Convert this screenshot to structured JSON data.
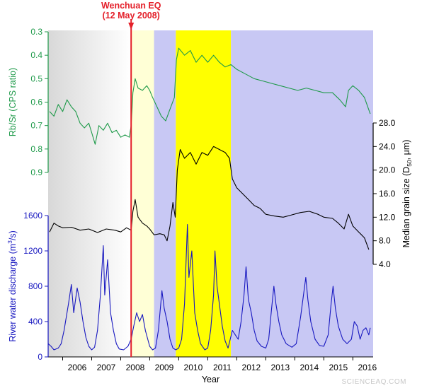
{
  "chart_data": {
    "type": "line",
    "title": "",
    "xlabel": "Year",
    "x_range": [
      2005.5,
      2016.7
    ],
    "x_ticks": [
      "2006",
      "2007",
      "2008",
      "2009",
      "2010",
      "2011",
      "2012",
      "2013",
      "2014",
      "2015",
      "2016"
    ],
    "event": {
      "label_line1": "Wenchuan EQ",
      "label_line2": "(12 May 2008)",
      "x": 2008.36,
      "color": "#e4202a"
    },
    "shaded_periods": [
      {
        "start": 2005.5,
        "end": 2008.36,
        "fill": "gradient-grey"
      },
      {
        "start": 2008.36,
        "end": 2009.15,
        "fill": "#ffffd6"
      },
      {
        "start": 2009.15,
        "end": 2009.9,
        "fill": "#c8c8f4"
      },
      {
        "start": 2009.9,
        "end": 2011.8,
        "fill": "#ffff00"
      },
      {
        "start": 2011.8,
        "end": 2016.7,
        "fill": "#c8c8f4"
      }
    ],
    "axes": [
      {
        "id": "rbsr",
        "label": "Rb/Sr (CPS ratio)",
        "side": "left",
        "inverted": true,
        "range": [
          0.3,
          0.9
        ],
        "ticks": [
          "0.3",
          "0.4",
          "0.5",
          "0.6",
          "0.7",
          "0.8",
          "0.9"
        ],
        "color": "#1f9a4a"
      },
      {
        "id": "grain",
        "label": "Median grain size (D",
        "label_sub": "50",
        "label_suffix": ", μm)",
        "side": "right",
        "range": [
          4,
          28
        ],
        "ticks": [
          "4.0",
          "8.0",
          "12.0",
          "16.0",
          "20.0",
          "24.0",
          "28.0"
        ],
        "color": "#000000"
      },
      {
        "id": "discharge",
        "label": "River water discharge (m",
        "label_sup": "3",
        "label_suffix": "/s)",
        "side": "left",
        "range": [
          0,
          1600
        ],
        "ticks": [
          "0",
          "400",
          "800",
          "1200",
          "1600"
        ],
        "color": "#1818c0"
      }
    ],
    "series": [
      {
        "axis": "rbsr",
        "color": "#1f9a4a",
        "points": [
          [
            2005.55,
            0.64
          ],
          [
            2005.7,
            0.66
          ],
          [
            2005.85,
            0.61
          ],
          [
            2006.0,
            0.64
          ],
          [
            2006.15,
            0.59
          ],
          [
            2006.3,
            0.62
          ],
          [
            2006.45,
            0.64
          ],
          [
            2006.6,
            0.69
          ],
          [
            2006.75,
            0.71
          ],
          [
            2006.9,
            0.69
          ],
          [
            2007.0,
            0.73
          ],
          [
            2007.12,
            0.78
          ],
          [
            2007.25,
            0.7
          ],
          [
            2007.4,
            0.72
          ],
          [
            2007.55,
            0.69
          ],
          [
            2007.7,
            0.73
          ],
          [
            2007.85,
            0.72
          ],
          [
            2008.0,
            0.75
          ],
          [
            2008.15,
            0.74
          ],
          [
            2008.3,
            0.75
          ],
          [
            2008.36,
            0.7
          ],
          [
            2008.42,
            0.56
          ],
          [
            2008.5,
            0.5
          ],
          [
            2008.6,
            0.54
          ],
          [
            2008.75,
            0.55
          ],
          [
            2008.9,
            0.53
          ],
          [
            2009.0,
            0.55
          ],
          [
            2009.1,
            0.58
          ],
          [
            2009.25,
            0.62
          ],
          [
            2009.4,
            0.66
          ],
          [
            2009.55,
            0.68
          ],
          [
            2009.7,
            0.63
          ],
          [
            2009.85,
            0.58
          ],
          [
            2009.92,
            0.42
          ],
          [
            2010.0,
            0.37
          ],
          [
            2010.2,
            0.4
          ],
          [
            2010.4,
            0.38
          ],
          [
            2010.6,
            0.43
          ],
          [
            2010.8,
            0.4
          ],
          [
            2011.0,
            0.43
          ],
          [
            2011.2,
            0.4
          ],
          [
            2011.4,
            0.43
          ],
          [
            2011.6,
            0.45
          ],
          [
            2011.8,
            0.44
          ],
          [
            2012.0,
            0.46
          ],
          [
            2012.3,
            0.48
          ],
          [
            2012.6,
            0.5
          ],
          [
            2012.9,
            0.51
          ],
          [
            2013.2,
            0.52
          ],
          [
            2013.5,
            0.53
          ],
          [
            2013.8,
            0.54
          ],
          [
            2014.1,
            0.55
          ],
          [
            2014.4,
            0.54
          ],
          [
            2014.7,
            0.55
          ],
          [
            2015.0,
            0.56
          ],
          [
            2015.3,
            0.56
          ],
          [
            2015.55,
            0.59
          ],
          [
            2015.75,
            0.62
          ],
          [
            2015.85,
            0.55
          ],
          [
            2016.0,
            0.53
          ],
          [
            2016.2,
            0.55
          ],
          [
            2016.4,
            0.58
          ],
          [
            2016.6,
            0.65
          ]
        ]
      },
      {
        "axis": "grain",
        "color": "#000000",
        "points": [
          [
            2005.55,
            9.5
          ],
          [
            2005.7,
            11.0
          ],
          [
            2005.85,
            10.5
          ],
          [
            2006.0,
            10.2
          ],
          [
            2006.3,
            10.3
          ],
          [
            2006.6,
            9.8
          ],
          [
            2006.9,
            10.0
          ],
          [
            2007.2,
            9.4
          ],
          [
            2007.5,
            10.0
          ],
          [
            2007.8,
            9.8
          ],
          [
            2008.0,
            9.5
          ],
          [
            2008.2,
            10.2
          ],
          [
            2008.36,
            9.8
          ],
          [
            2008.42,
            13.0
          ],
          [
            2008.5,
            15.0
          ],
          [
            2008.6,
            12.0
          ],
          [
            2008.75,
            11.0
          ],
          [
            2008.9,
            10.5
          ],
          [
            2009.0,
            10.0
          ],
          [
            2009.15,
            9.0
          ],
          [
            2009.35,
            9.2
          ],
          [
            2009.5,
            9.0
          ],
          [
            2009.6,
            8.0
          ],
          [
            2009.7,
            10.5
          ],
          [
            2009.8,
            14.5
          ],
          [
            2009.88,
            12.0
          ],
          [
            2009.95,
            20.0
          ],
          [
            2010.05,
            23.5
          ],
          [
            2010.2,
            22.0
          ],
          [
            2010.4,
            23.0
          ],
          [
            2010.6,
            21.0
          ],
          [
            2010.8,
            23.0
          ],
          [
            2011.0,
            22.5
          ],
          [
            2011.2,
            24.0
          ],
          [
            2011.4,
            23.5
          ],
          [
            2011.6,
            23.0
          ],
          [
            2011.75,
            22.0
          ],
          [
            2011.85,
            18.5
          ],
          [
            2012.0,
            17.0
          ],
          [
            2012.2,
            16.0
          ],
          [
            2012.4,
            15.0
          ],
          [
            2012.6,
            14.0
          ],
          [
            2012.8,
            13.5
          ],
          [
            2013.0,
            12.5
          ],
          [
            2013.3,
            12.2
          ],
          [
            2013.6,
            12.0
          ],
          [
            2013.9,
            12.4
          ],
          [
            2014.2,
            12.8
          ],
          [
            2014.5,
            13.0
          ],
          [
            2014.8,
            12.5
          ],
          [
            2015.0,
            12.0
          ],
          [
            2015.3,
            11.8
          ],
          [
            2015.5,
            11.0
          ],
          [
            2015.7,
            10.0
          ],
          [
            2015.85,
            12.5
          ],
          [
            2016.0,
            10.5
          ],
          [
            2016.2,
            9.5
          ],
          [
            2016.4,
            8.5
          ],
          [
            2016.55,
            6.5
          ]
        ]
      },
      {
        "axis": "discharge",
        "color": "#1818c0",
        "points": [
          [
            2005.5,
            150
          ],
          [
            2005.6,
            120
          ],
          [
            2005.7,
            80
          ],
          [
            2005.85,
            100
          ],
          [
            2005.95,
            150
          ],
          [
            2006.05,
            300
          ],
          [
            2006.2,
            600
          ],
          [
            2006.3,
            820
          ],
          [
            2006.38,
            500
          ],
          [
            2006.5,
            780
          ],
          [
            2006.6,
            620
          ],
          [
            2006.7,
            400
          ],
          [
            2006.8,
            220
          ],
          [
            2006.9,
            120
          ],
          [
            2007.0,
            80
          ],
          [
            2007.1,
            110
          ],
          [
            2007.2,
            300
          ],
          [
            2007.3,
            700
          ],
          [
            2007.4,
            1260
          ],
          [
            2007.45,
            700
          ],
          [
            2007.55,
            1100
          ],
          [
            2007.65,
            500
          ],
          [
            2007.75,
            300
          ],
          [
            2007.85,
            150
          ],
          [
            2007.95,
            90
          ],
          [
            2008.1,
            80
          ],
          [
            2008.25,
            120
          ],
          [
            2008.36,
            200
          ],
          [
            2008.45,
            350
          ],
          [
            2008.55,
            500
          ],
          [
            2008.65,
            400
          ],
          [
            2008.75,
            480
          ],
          [
            2008.85,
            300
          ],
          [
            2009.0,
            120
          ],
          [
            2009.1,
            80
          ],
          [
            2009.2,
            100
          ],
          [
            2009.3,
            300
          ],
          [
            2009.42,
            750
          ],
          [
            2009.5,
            550
          ],
          [
            2009.6,
            400
          ],
          [
            2009.7,
            200
          ],
          [
            2009.8,
            100
          ],
          [
            2009.9,
            80
          ],
          [
            2010.0,
            100
          ],
          [
            2010.1,
            200
          ],
          [
            2010.2,
            600
          ],
          [
            2010.3,
            1500
          ],
          [
            2010.35,
            900
          ],
          [
            2010.45,
            1200
          ],
          [
            2010.55,
            500
          ],
          [
            2010.65,
            300
          ],
          [
            2010.75,
            150
          ],
          [
            2010.9,
            80
          ],
          [
            2011.0,
            100
          ],
          [
            2011.1,
            300
          ],
          [
            2011.2,
            700
          ],
          [
            2011.25,
            1200
          ],
          [
            2011.32,
            800
          ],
          [
            2011.4,
            600
          ],
          [
            2011.5,
            350
          ],
          [
            2011.6,
            180
          ],
          [
            2011.7,
            100
          ],
          [
            2011.85,
            300
          ],
          [
            2011.95,
            250
          ],
          [
            2012.05,
            200
          ],
          [
            2012.15,
            400
          ],
          [
            2012.25,
            700
          ],
          [
            2012.32,
            1020
          ],
          [
            2012.4,
            650
          ],
          [
            2012.5,
            500
          ],
          [
            2012.6,
            300
          ],
          [
            2012.7,
            180
          ],
          [
            2012.85,
            120
          ],
          [
            2013.0,
            100
          ],
          [
            2013.1,
            200
          ],
          [
            2013.2,
            550
          ],
          [
            2013.28,
            800
          ],
          [
            2013.35,
            600
          ],
          [
            2013.45,
            400
          ],
          [
            2013.55,
            250
          ],
          [
            2013.7,
            150
          ],
          [
            2013.9,
            110
          ],
          [
            2014.05,
            150
          ],
          [
            2014.2,
            450
          ],
          [
            2014.3,
            700
          ],
          [
            2014.38,
            900
          ],
          [
            2014.45,
            650
          ],
          [
            2014.55,
            400
          ],
          [
            2014.7,
            200
          ],
          [
            2014.85,
            130
          ],
          [
            2015.0,
            120
          ],
          [
            2015.15,
            250
          ],
          [
            2015.25,
            600
          ],
          [
            2015.32,
            800
          ],
          [
            2015.4,
            550
          ],
          [
            2015.5,
            350
          ],
          [
            2015.65,
            200
          ],
          [
            2015.8,
            150
          ],
          [
            2015.95,
            200
          ],
          [
            2016.05,
            400
          ],
          [
            2016.15,
            350
          ],
          [
            2016.25,
            200
          ],
          [
            2016.35,
            300
          ],
          [
            2016.45,
            330
          ],
          [
            2016.55,
            250
          ],
          [
            2016.6,
            330
          ]
        ]
      }
    ]
  },
  "watermark": "SCIENCEAQ.COM"
}
